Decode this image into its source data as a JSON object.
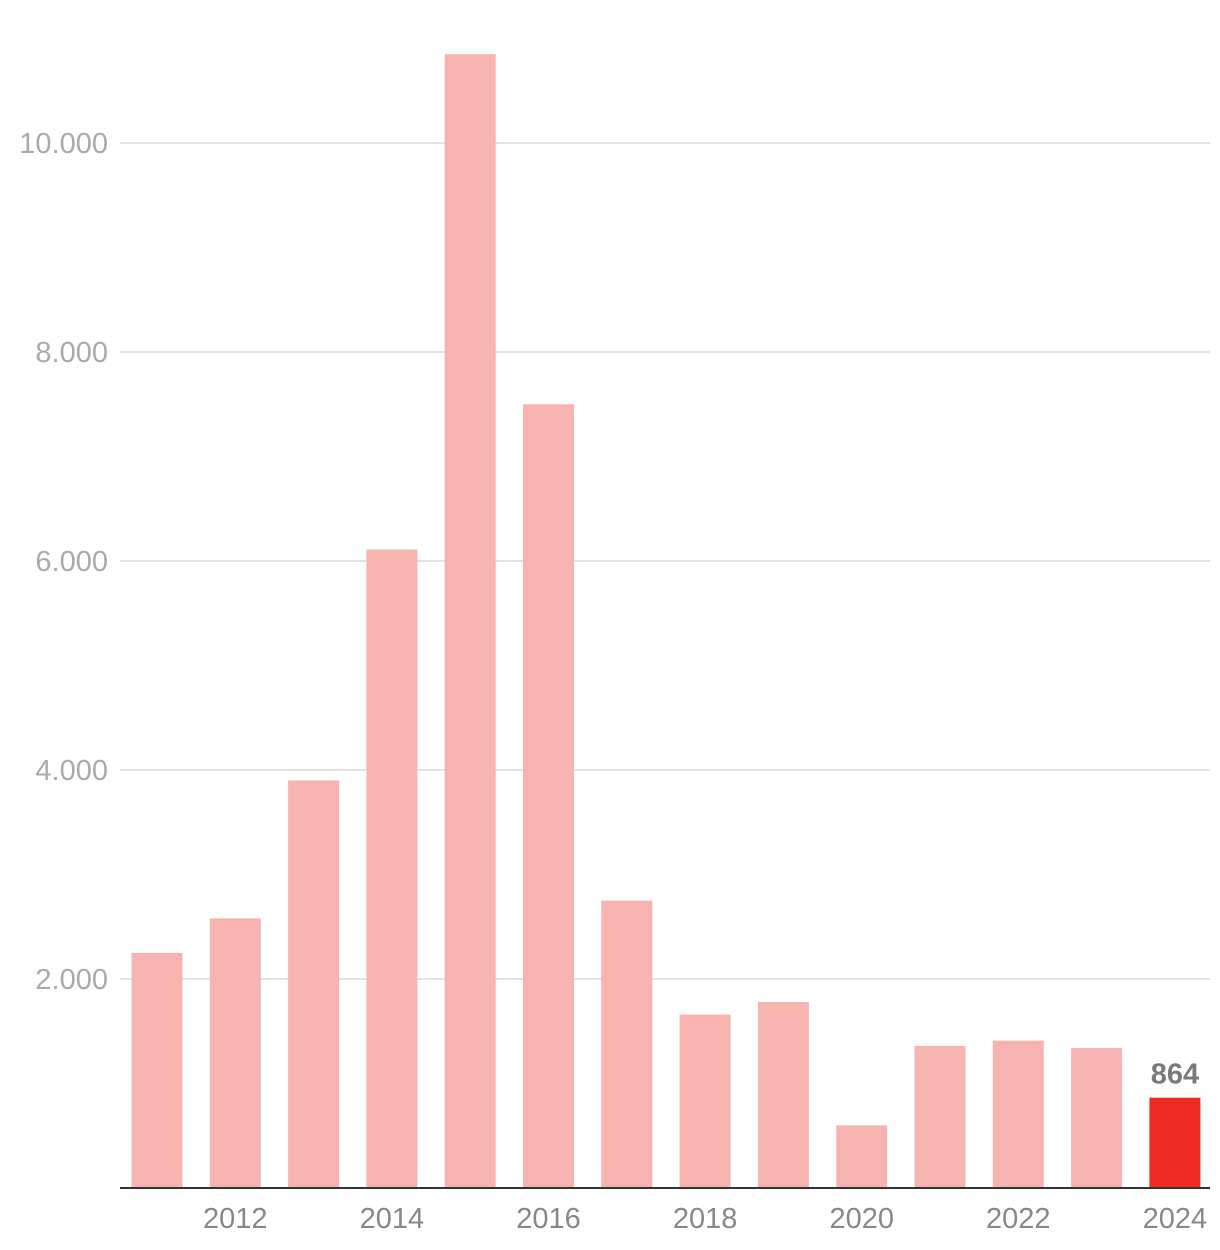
{
  "chart_data": {
    "type": "bar",
    "title": "",
    "xlabel": "",
    "ylabel": "",
    "categories": [
      "2011",
      "2012",
      "2013",
      "2014",
      "2015",
      "2016",
      "2017",
      "2018",
      "2019",
      "2020",
      "2021",
      "2022",
      "2023",
      "2024"
    ],
    "values": [
      2250,
      2580,
      3900,
      6110,
      10850,
      7500,
      2750,
      1660,
      1780,
      600,
      1360,
      1410,
      1340,
      864
    ],
    "ylim": [
      0,
      11000
    ],
    "yticks": [
      2000,
      4000,
      6000,
      8000,
      10000
    ],
    "ytick_labels": [
      "2.000",
      "4.000",
      "6.000",
      "8.000",
      "10.000"
    ],
    "xtick_labels": [
      "2012",
      "2014",
      "2016",
      "2018",
      "2020",
      "2022",
      "2024"
    ],
    "data_labels": [
      {
        "category": "2024",
        "text": "864"
      }
    ],
    "highlight_category": "2024",
    "grid": true,
    "legend": "none",
    "colors": {
      "bar": "#f7b3b0",
      "highlight": "#ee2a24",
      "grid": "#e2e2e2",
      "axis": "#333333",
      "tick_text": "#aaaaaa",
      "xtick_text": "#888888",
      "data_label": "#7a7a7a"
    }
  }
}
